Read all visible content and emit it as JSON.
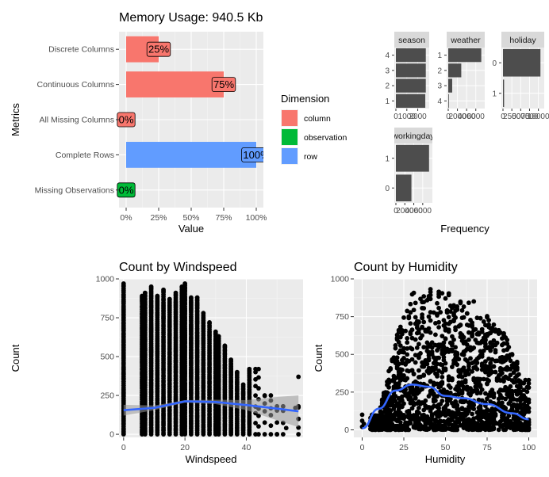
{
  "chart_data": [
    {
      "type": "bar",
      "orientation": "horizontal",
      "title": "Memory Usage: 940.5 Kb",
      "xlabel": "Value",
      "ylabel": "Metrics",
      "categories": [
        "Discrete Columns",
        "Continuous Columns",
        "All Missing Columns",
        "Complete Rows",
        "Missing Observations"
      ],
      "values": [
        0.25,
        0.75,
        0,
        1,
        0
      ],
      "value_labels": [
        "25%",
        "75%",
        "0%",
        "100%",
        "0%"
      ],
      "dimension": [
        "column",
        "column",
        "column",
        "row",
        "observation"
      ],
      "x_ticks": [
        "0%",
        "25%",
        "50%",
        "75%",
        "100%"
      ],
      "xlim": [
        0,
        1
      ],
      "legend": {
        "title": "Dimension",
        "position": "right",
        "entries": [
          {
            "name": "column",
            "color": "#F8766D"
          },
          {
            "name": "observation",
            "color": "#00BA38"
          },
          {
            "name": "row",
            "color": "#619CFF"
          }
        ]
      }
    },
    {
      "type": "bar",
      "orientation": "horizontal",
      "xlabel": "Frequency",
      "facets": [
        {
          "strip": "season",
          "categories": [
            "4",
            "3",
            "2",
            "1"
          ],
          "values": [
            2734,
            2733,
            2733,
            2686
          ],
          "x_ticks": [
            "0",
            "1000",
            "2000"
          ],
          "xlim": [
            0,
            2900
          ]
        },
        {
          "strip": "weather",
          "categories": [
            "1",
            "2",
            "3",
            "4"
          ],
          "values": [
            7192,
            2834,
            859,
            1
          ],
          "x_ticks": [
            "0",
            "2000",
            "4000",
            "6000"
          ],
          "xlim": [
            0,
            7600
          ]
        },
        {
          "strip": "holiday",
          "categories": [
            "0",
            "1"
          ],
          "values": [
            10575,
            311
          ],
          "x_ticks": [
            "0",
            "2500",
            "5000",
            "7500",
            "10000"
          ],
          "xlim": [
            0,
            11200
          ]
        },
        {
          "strip": "workingday",
          "categories": [
            "1",
            "0"
          ],
          "values": [
            7412,
            3474
          ],
          "x_ticks": [
            "0",
            "2000",
            "4000",
            "6000"
          ],
          "xlim": [
            0,
            7800
          ]
        }
      ],
      "bar_color": "#4d4d4d"
    },
    {
      "type": "scatter",
      "title": "Count by Windspeed",
      "xlabel": "Windspeed",
      "ylabel": "Count",
      "x_ticks": [
        0,
        20,
        40
      ],
      "y_ticks": [
        0,
        250,
        500,
        750,
        1000
      ],
      "xlim": [
        -1.5,
        58.5
      ],
      "ylim": [
        -20,
        1000
      ],
      "windspeed_values": [
        0,
        6.0032,
        7.0015,
        8.9981,
        11.0014,
        12.998,
        15.0013,
        16.9979,
        19.0012,
        19.9995,
        22.0028,
        23.9994,
        26.0027,
        27.9993,
        30.0026,
        31.0009,
        32.9975,
        35.0008,
        36.9974,
        39.0007,
        40.9973,
        43.0006,
        43.9989,
        46.0022,
        47.9988,
        50.0021,
        51.9987,
        56.9969
      ],
      "smooth": {
        "x": [
          0,
          10,
          20,
          30,
          40,
          50,
          57
        ],
        "y": [
          155,
          170,
          212,
          208,
          188,
          165,
          148
        ],
        "se_upper": [
          190,
          185,
          220,
          222,
          220,
          240,
          250
        ],
        "se_lower": [
          120,
          155,
          204,
          194,
          156,
          90,
          46
        ]
      }
    },
    {
      "type": "scatter",
      "title": "Count by Humidity",
      "xlabel": "Humidity",
      "ylabel": "Count",
      "x_ticks": [
        0,
        25,
        50,
        75,
        100
      ],
      "y_ticks": [
        0,
        250,
        500,
        750,
        1000
      ],
      "xlim": [
        -5,
        105
      ],
      "ylim": [
        -50,
        1000
      ],
      "smooth": {
        "x": [
          0,
          10,
          20,
          30,
          40,
          50,
          60,
          75,
          90,
          100
        ],
        "y": [
          10,
          140,
          260,
          300,
          285,
          225,
          210,
          170,
          110,
          70
        ]
      }
    }
  ]
}
